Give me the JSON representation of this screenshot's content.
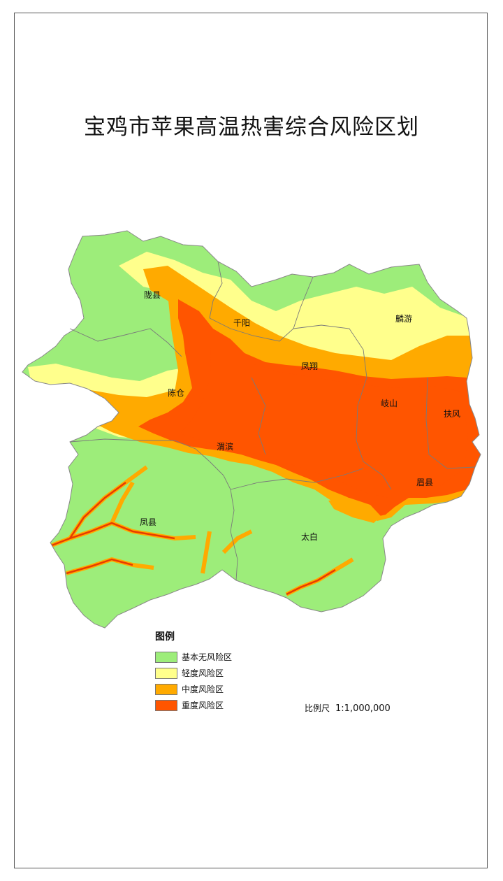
{
  "title": "宝鸡市苹果高温热害综合风险区划",
  "colors": {
    "none": "#9ded7a",
    "light": "#ffff8c",
    "medium": "#ffaa00",
    "heavy": "#ff5500",
    "deep": "#e63c00",
    "boundary": "#7a7a7a"
  },
  "counties": [
    "陇县",
    "千阳",
    "麟游",
    "凤翔",
    "陈仓",
    "岐山",
    "扶风",
    "渭滨",
    "眉县",
    "凤县",
    "太白"
  ],
  "legend": {
    "title": "图例",
    "items": [
      "基本无风险区",
      "轻度风险区",
      "中度风险区",
      "重度风险区"
    ]
  },
  "scale": {
    "label": "比例尺",
    "value": "1:1,000,000"
  }
}
